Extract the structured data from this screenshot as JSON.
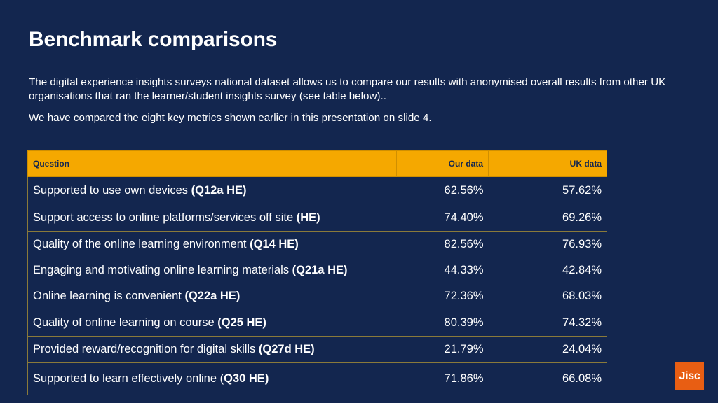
{
  "slide": {
    "title": "Benchmark comparisons",
    "intro": "The digital experience insights surveys national dataset allows us to compare our results with anonymised overall results from other UK organisations that ran the learner/student insights survey (see table below)..",
    "note": "We have compared the eight key metrics shown earlier in this presentation on slide 4."
  },
  "table": {
    "headers": {
      "question": "Question",
      "ours": "Our data",
      "uk": "UK data"
    },
    "rows": [
      {
        "text": "Supported to use own devices ",
        "code": "(Q12a HE)",
        "code_prefix": "",
        "ours": "62.56%",
        "uk": "57.62%"
      },
      {
        "text": "Support access to online platforms/services off site ",
        "code": "(HE)",
        "code_prefix": "",
        "ours": "74.40%",
        "uk": "69.26%"
      },
      {
        "text": "Quality of the online learning environment ",
        "code": "(Q14 HE)",
        "code_prefix": "",
        "ours": "82.56%",
        "uk": "76.93%"
      },
      {
        "text": "Engaging and motivating online learning materials ",
        "code": "(Q21a HE)",
        "code_prefix": "",
        "ours": "44.33%",
        "uk": "42.84%"
      },
      {
        "text": "Online learning is convenient ",
        "code": "(Q22a HE)",
        "code_prefix": "",
        "ours": "72.36%",
        "uk": "68.03%"
      },
      {
        "text": "Quality of online learning on course ",
        "code": "(Q25 HE)",
        "code_prefix": "",
        "ours": "80.39%",
        "uk": "74.32%"
      },
      {
        "text": "Provided reward/recognition for digital skills ",
        "code": "(Q27d HE)",
        "code_prefix": "",
        "ours": "21.79%",
        "uk": "24.04%"
      },
      {
        "text": "Supported to learn effectively online ",
        "code": "Q30 HE)",
        "code_prefix": "(",
        "ours": "71.86%",
        "uk": "66.08%"
      }
    ]
  },
  "logo": {
    "text": "Jisc",
    "color": "#e85e13"
  }
}
